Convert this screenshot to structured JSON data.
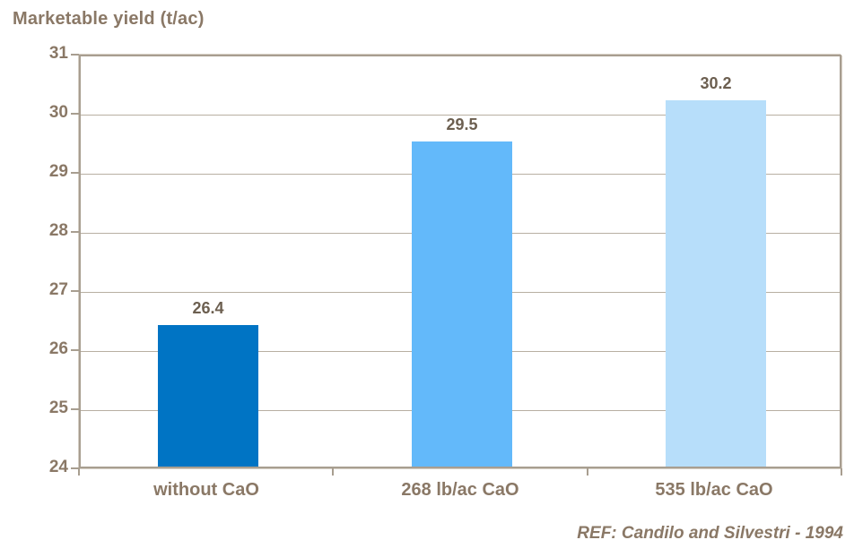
{
  "chart_data": {
    "type": "bar",
    "title": "Marketable yield (t/ac)",
    "categories": [
      "without CaO",
      "268 lb/ac CaO",
      "535 lb/ac CaO"
    ],
    "values": [
      26.4,
      29.5,
      30.2
    ],
    "value_labels": [
      "26.4",
      "29.5",
      "30.2"
    ],
    "bar_colors": [
      "#0074C4",
      "#63B9FA",
      "#B7DEFA"
    ],
    "ylim": [
      24,
      31
    ],
    "yticks": [
      24,
      25,
      26,
      27,
      28,
      29,
      30,
      31
    ],
    "xlabel": "",
    "ylabel": "",
    "grid": "horizontal",
    "legend": "none",
    "reference": "REF: Candilo and Silvestri - 1994"
  },
  "colors": {
    "title_text": "#8A7866",
    "axis_text": "#8A7866",
    "data_label_text": "#6C5F50",
    "gridline": "#B8AFA2",
    "axis_border": "#A89E90",
    "background": "#FFFFFF"
  }
}
